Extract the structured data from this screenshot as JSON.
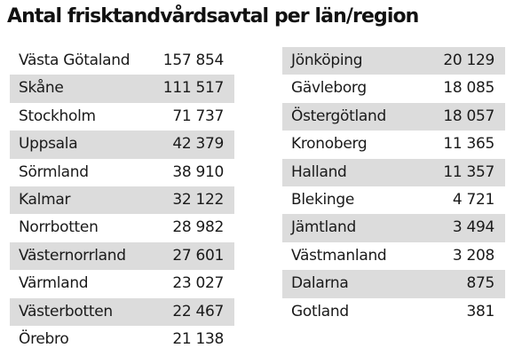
{
  "title": "Antal frisktandvårdsavtal per län/region",
  "left_rows": [
    {
      "region": "Västa Götaland",
      "count": "157 854"
    },
    {
      "region": "Skåne",
      "count": "111 517"
    },
    {
      "region": "Stockholm",
      "count": "71 737"
    },
    {
      "region": "Uppsala",
      "count": "42 379"
    },
    {
      "region": "Sörmland",
      "count": "38 910"
    },
    {
      "region": "Kalmar",
      "count": "32 122"
    },
    {
      "region": "Norrbotten",
      "count": "28 982"
    },
    {
      "region": "Västernorrland",
      "count": "27 601"
    },
    {
      "region": "Värmland",
      "count": "23 027"
    },
    {
      "region": "Västerbotten",
      "count": "22 467"
    },
    {
      "region": "Örebro",
      "count": "21 138"
    }
  ],
  "right_rows": [
    {
      "region": "Jönköping",
      "count": "20 129"
    },
    {
      "region": "Gävleborg",
      "count": "18 085"
    },
    {
      "region": "Östergötland",
      "count": "18 057"
    },
    {
      "region": "Kronoberg",
      "count": "11 365"
    },
    {
      "region": "Halland",
      "count": "11 357"
    },
    {
      "region": "Blekinge",
      "count": "4 721"
    },
    {
      "region": "Jämtland",
      "count": "3 494"
    },
    {
      "region": "Västmanland",
      "count": "3 208"
    },
    {
      "region": "Dalarna",
      "count": "875"
    },
    {
      "region": "Gotland",
      "count": "381"
    }
  ],
  "colors": {
    "shade": "#dcdcdc",
    "text": "#1a1a1a"
  }
}
